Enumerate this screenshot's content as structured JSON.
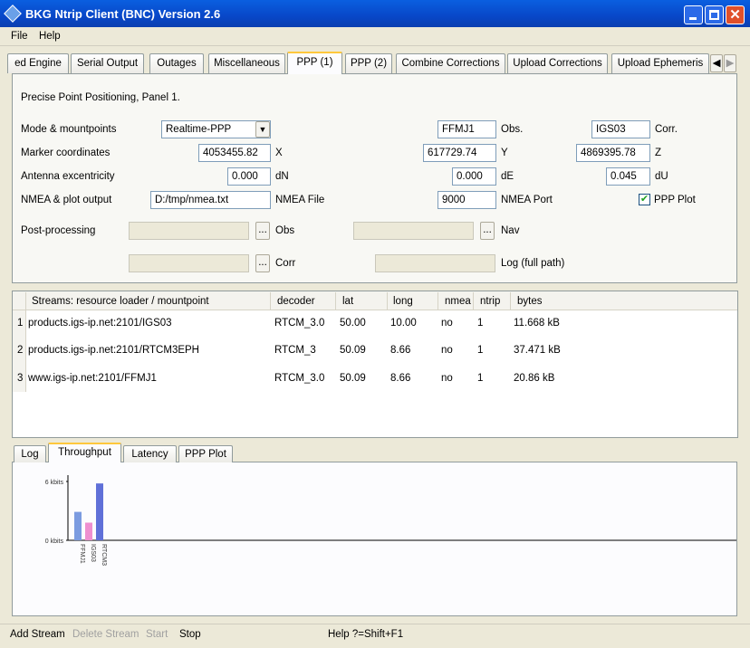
{
  "window": {
    "title": "BKG Ntrip Client (BNC) Version 2.6"
  },
  "menu": [
    "File",
    "Help"
  ],
  "tabs": [
    "ed Engine",
    "Serial Output",
    "Outages",
    "Miscellaneous",
    "PPP (1)",
    "PPP (2)",
    "Combine Corrections",
    "Upload Corrections",
    "Upload Ephemeris"
  ],
  "ppp_panel": {
    "heading": "Precise Point Positioning, Panel 1.",
    "mode_label": "Mode & mountpoints",
    "mode": "Realtime-PPP",
    "obs_mountpoint": "FFMJ1",
    "obs_label": "Obs.",
    "corr_mountpoint": "IGS03",
    "corr_label": "Corr.",
    "marker_label": "Marker coordinates",
    "x": "4053455.82",
    "x_label": "X",
    "y": "617729.74",
    "y_label": "Y",
    "z": "4869395.78",
    "z_label": "Z",
    "antenna_label": "Antenna excentricity",
    "dn": "0.000",
    "dn_label": "dN",
    "de": "0.000",
    "de_label": "dE",
    "du": "0.045",
    "du_label": "dU",
    "nmea_label": "NMEA & plot output",
    "nmea_file": "D:/tmp/nmea.txt",
    "nmea_file_label": "NMEA File",
    "nmea_port": "9000",
    "nmea_port_label": "NMEA Port",
    "ppp_plot_label": "PPP Plot",
    "post_label": "Post-processing",
    "browse": "...",
    "obs_file_label": "Obs",
    "nav_label": "Nav",
    "corr_file_label": "Corr",
    "log_label": "Log (full path)"
  },
  "streams": {
    "columns": [
      "Streams:  resource loader / mountpoint",
      "decoder",
      "lat",
      "long",
      "nmea",
      "ntrip",
      "bytes"
    ],
    "rows": [
      [
        "1",
        "products.igs-ip.net:2101/IGS03",
        "RTCM_3.0",
        "50.00",
        "10.00",
        "no",
        "1",
        "11.668 kB"
      ],
      [
        "2",
        "products.igs-ip.net:2101/RTCM3EPH",
        "RTCM_3",
        "50.09",
        "8.66",
        "no",
        "1",
        "37.471 kB"
      ],
      [
        "3",
        "www.igs-ip.net:2101/FFMJ1",
        "RTCM_3.0",
        "50.09",
        "8.66",
        "no",
        "1",
        "20.86 kB"
      ]
    ]
  },
  "bottom_tabs": [
    "Log",
    "Throughput",
    "Latency",
    "PPP Plot"
  ],
  "chart_data": {
    "type": "bar",
    "categories": [
      "FFMJ1",
      "IGS03",
      "RTCM3"
    ],
    "values": [
      2.9,
      1.8,
      5.8
    ],
    "colors": [
      "#7b9be0",
      "#ee8fd0",
      "#6070d8"
    ],
    "ylim": [
      0,
      6
    ],
    "yticks": [
      {
        "value": 0,
        "label": "0 kbits"
      },
      {
        "value": 6,
        "label": "6 kbits"
      }
    ]
  },
  "status": {
    "actions": [
      "Add Stream",
      "Delete Stream",
      "Start",
      "Stop"
    ],
    "help": "Help ?=Shift+F1"
  }
}
